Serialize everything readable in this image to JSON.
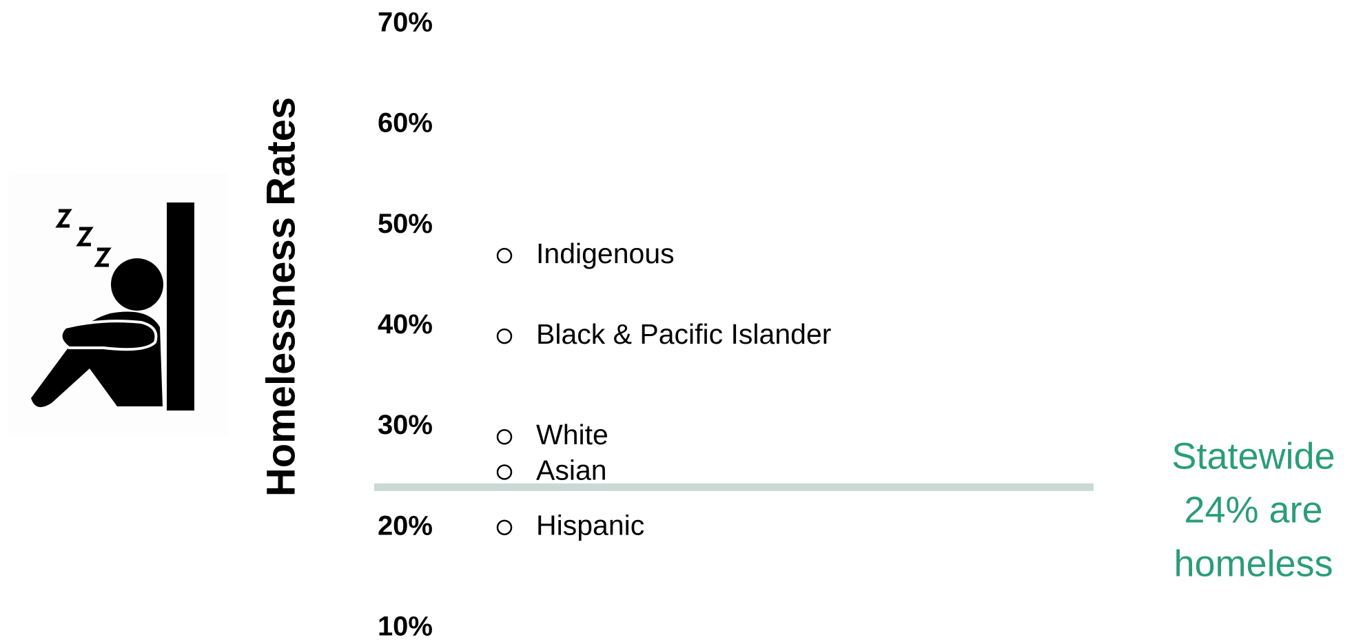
{
  "chart_data": {
    "type": "scatter",
    "y_label": "Homelessness  Rates",
    "categories": [
      "Indigenous",
      "Black & Pacific Islander",
      "White",
      "Asian",
      "Hispanic"
    ],
    "values": [
      47,
      39,
      29,
      25.5,
      20
    ],
    "color": "#000000",
    "ylim": [
      10,
      70
    ],
    "yticks": [
      {
        "value": 10,
        "label": "10%"
      },
      {
        "value": 20,
        "label": "20%"
      },
      {
        "value": 30,
        "label": "30%"
      },
      {
        "value": 40,
        "label": "40%"
      },
      {
        "value": 50,
        "label": "50%"
      },
      {
        "value": 60,
        "label": "60%"
      },
      {
        "value": 70,
        "label": "70%"
      }
    ],
    "reference_line": {
      "value": 24,
      "label": [
        "Statewide",
        "24% are",
        "homeless"
      ],
      "color": "#c9d9d5",
      "label_color": "#2a9d78"
    }
  }
}
